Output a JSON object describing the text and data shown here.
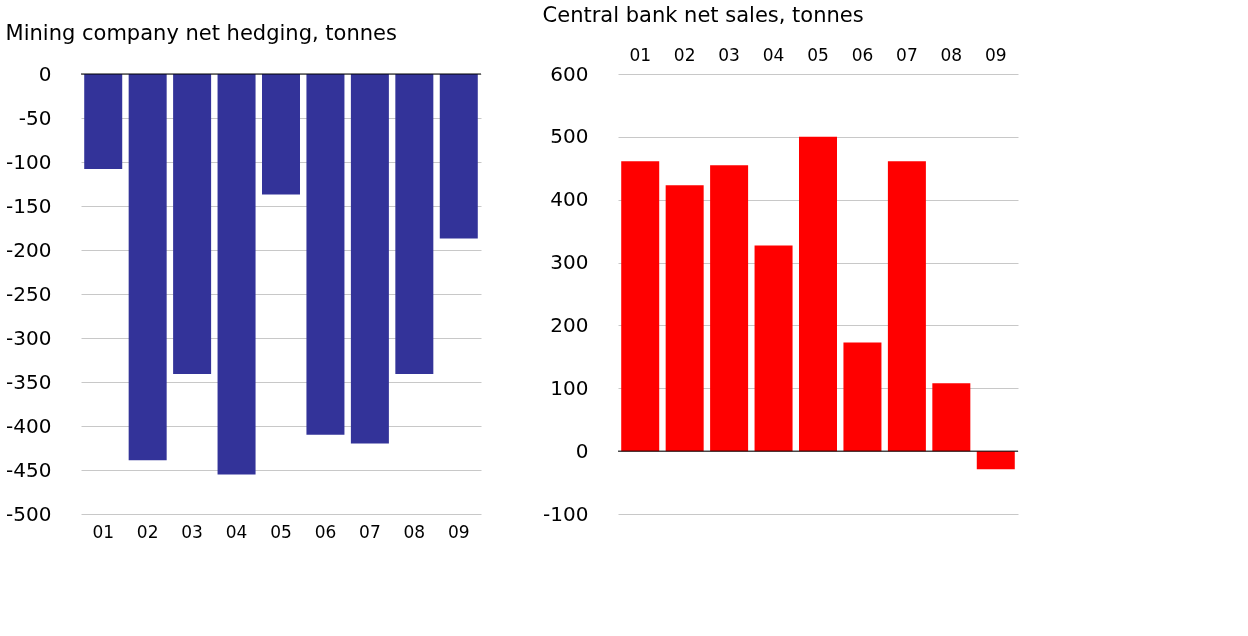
{
  "chart_data": [
    {
      "type": "bar",
      "title": "Mining company net hedging, tonnes",
      "categories": [
        "01",
        "02",
        "03",
        "04",
        "05",
        "06",
        "07",
        "08",
        "09"
      ],
      "series": [
        {
          "color": "#333399",
          "values": [
            -108,
            -439,
            -341,
            -455,
            -137,
            -410,
            -420,
            -341,
            -187
          ]
        }
      ],
      "ylim": [
        -500,
        0
      ],
      "yticks": [
        -500,
        -450,
        -400,
        -350,
        -300,
        -250,
        -200,
        -150,
        -100,
        -50,
        0
      ],
      "grid": "y",
      "legend": false
    },
    {
      "type": "bar",
      "title": "Central bank net sales, tonnes",
      "categories": [
        "01",
        "02",
        "03",
        "04",
        "05",
        "06",
        "07",
        "08",
        "09"
      ],
      "series": [
        {
          "color": "#ff0000",
          "values": [
            461,
            423,
            455,
            327,
            500,
            173,
            461,
            108,
            -29
          ]
        }
      ],
      "ylim": [
        -100,
        600
      ],
      "yticks": [
        -100,
        0,
        100,
        200,
        300,
        400,
        500,
        600
      ],
      "grid": "y",
      "legend": false
    }
  ]
}
